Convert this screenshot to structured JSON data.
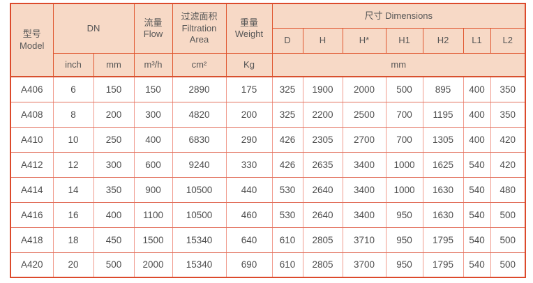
{
  "table": {
    "title": "filtration-equipment-specifications",
    "header": {
      "model": "型号 Model",
      "dn": "DN",
      "flow": "流量 Flow",
      "filtration_area": "过滤面积 Filtration Area",
      "weight": "重量 Weight",
      "dimensions": "尺寸 Dimensions",
      "dim_cols": [
        "D",
        "H",
        "H*",
        "H1",
        "H2",
        "L1",
        "L2"
      ],
      "units": {
        "inch": "inch",
        "mm": "mm",
        "flow": "m³/h",
        "area": "cm²",
        "weight": "Kg",
        "dims": "mm"
      }
    },
    "col_keys": [
      "model",
      "dn-inch",
      "dn-mm",
      "flow",
      "filtration-area",
      "weight",
      "dim-d",
      "dim-h",
      "dim-hstar",
      "dim-h1",
      "dim-h2",
      "dim-l1",
      "dim-l2"
    ],
    "rows": [
      [
        "A406",
        "6",
        "150",
        "150",
        "2890",
        "175",
        "325",
        "1900",
        "2000",
        "500",
        "895",
        "400",
        "350"
      ],
      [
        "A408",
        "8",
        "200",
        "300",
        "4820",
        "200",
        "325",
        "2200",
        "2500",
        "700",
        "1195",
        "400",
        "350"
      ],
      [
        "A410",
        "10",
        "250",
        "400",
        "6830",
        "290",
        "426",
        "2305",
        "2700",
        "700",
        "1305",
        "400",
        "420"
      ],
      [
        "A412",
        "12",
        "300",
        "600",
        "9240",
        "330",
        "426",
        "2635",
        "3400",
        "1000",
        "1625",
        "540",
        "420"
      ],
      [
        "A414",
        "14",
        "350",
        "900",
        "10500",
        "440",
        "530",
        "2640",
        "3400",
        "1000",
        "1630",
        "540",
        "480"
      ],
      [
        "A416",
        "16",
        "400",
        "1100",
        "10500",
        "460",
        "530",
        "2640",
        "3400",
        "950",
        "1630",
        "540",
        "500"
      ],
      [
        "A418",
        "18",
        "450",
        "1500",
        "15340",
        "640",
        "610",
        "2805",
        "3710",
        "950",
        "1795",
        "540",
        "500"
      ],
      [
        "A420",
        "20",
        "500",
        "2000",
        "15340",
        "690",
        "610",
        "2805",
        "3700",
        "950",
        "1795",
        "540",
        "500"
      ]
    ]
  },
  "colors": {
    "header_background": "#f7d9c6",
    "header_border": "#e0552e",
    "outer_border": "#dc4a2c",
    "body_border_vertical": "#f09a8c",
    "body_border_horizontal": "#e2705c",
    "text": "#4d4d4d"
  }
}
